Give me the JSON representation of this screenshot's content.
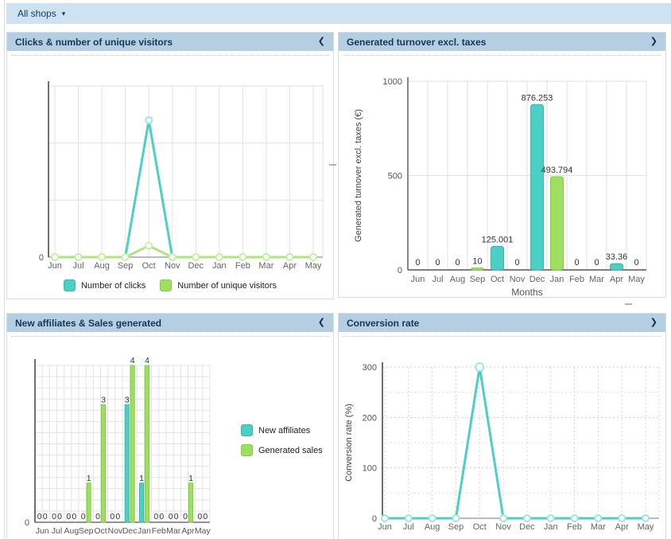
{
  "topbar": {
    "shop_selector": "All shops",
    "dropdown_icon": "▾"
  },
  "colors": {
    "teal": "#4ccfc4",
    "teal_border": "#38b7ac",
    "teal_pale": "#9fe5dd",
    "green": "#9de05f",
    "green_border": "#82cc43",
    "green_pale": "#c9efa4",
    "line_green": "#abe67f",
    "grid": "#e2e2e2",
    "axis_dark": "#444444",
    "axis_base": "#777777",
    "tick_text": "#666666",
    "value_text": "#333333"
  },
  "months": [
    "Jun",
    "Jul",
    "Aug",
    "Sep",
    "Oct",
    "Nov",
    "Dec",
    "Jan",
    "Feb",
    "Mar",
    "Apr",
    "May"
  ],
  "panels": [
    {
      "id": "clicks_visitors",
      "title": "Clicks & number of unique visitors",
      "collapse_icon": "❮",
      "chart_data": {
        "type": "line",
        "x": [
          "Jun",
          "Jul",
          "Aug",
          "Sep",
          "Oct",
          "Nov",
          "Dec",
          "Jan",
          "Feb",
          "Mar",
          "Apr",
          "May"
        ],
        "series": [
          {
            "name": "Number of clicks",
            "color": "teal",
            "values": [
              0,
              0,
              0,
              0,
              12,
              0,
              0,
              0,
              0,
              0,
              0,
              0
            ]
          },
          {
            "name": "Number of unique visitors",
            "color": "green",
            "values": [
              0,
              0,
              0,
              0,
              1,
              0,
              0,
              0,
              0,
              0,
              0,
              0
            ]
          }
        ],
        "ylim": [
          0,
          15
        ],
        "y_tick_labels": [
          "0"
        ],
        "legend_position": "bottom",
        "grid": true
      }
    },
    {
      "id": "turnover",
      "title": "Generated turnover excl. taxes",
      "collapse_icon": "❯",
      "chart_data": {
        "type": "bar",
        "categories": [
          "Jun",
          "Jul",
          "Aug",
          "Sep",
          "Oct",
          "Nov",
          "Dec",
          "Jan",
          "Feb",
          "Mar",
          "Apr",
          "May"
        ],
        "values": [
          0,
          0,
          0,
          10,
          125.001,
          0,
          876.253,
          493.794,
          0,
          0,
          33.36,
          0
        ],
        "data_labels": [
          "0",
          "0",
          "0",
          "10",
          "125.001",
          "0",
          "876.253",
          "493.794",
          "0",
          "0",
          "33.36",
          "0"
        ],
        "bar_colors": [
          null,
          null,
          null,
          "green",
          "teal",
          null,
          "teal",
          "green",
          null,
          null,
          "teal",
          null
        ],
        "yticks": [
          0,
          500,
          1000
        ],
        "ylim": [
          0,
          1000
        ],
        "ylabel": "Generated turnover excl. taxes (€)",
        "xlabel": "Months",
        "grid": true
      }
    },
    {
      "id": "affiliates_sales",
      "title": "New affiliates & Sales generated",
      "collapse_icon": "❮",
      "chart_data": {
        "type": "grouped_bar",
        "categories": [
          "Jun",
          "Jul",
          "Aug",
          "Sep",
          "Oct",
          "Nov",
          "Dec",
          "Jan",
          "Feb",
          "Mar",
          "Apr",
          "May"
        ],
        "series": [
          {
            "name": "New affiliates",
            "color": "teal",
            "values": [
              0,
              0,
              0,
              0,
              0,
              0,
              3,
              1,
              0,
              0,
              0,
              0
            ]
          },
          {
            "name": "Generated sales",
            "color": "green",
            "values": [
              0,
              0,
              0,
              1,
              3,
              0,
              4,
              4,
              0,
              0,
              1,
              0
            ]
          }
        ],
        "ylim": [
          0,
          4
        ],
        "y_tick_labels": [
          "0"
        ],
        "legend_position": "right",
        "grid": true
      }
    },
    {
      "id": "conversion",
      "title": "Conversion rate",
      "collapse_icon": "❯",
      "chart_data": {
        "type": "line",
        "x": [
          "Jun",
          "Jul",
          "Aug",
          "Sep",
          "Oct",
          "Nov",
          "Dec",
          "Jan",
          "Feb",
          "Mar",
          "Apr",
          "May"
        ],
        "series": [
          {
            "name": "Conversion rate",
            "color": "teal",
            "values": [
              0,
              0,
              0,
              0,
              300,
              0,
              0,
              0,
              0,
              0,
              0,
              0
            ]
          }
        ],
        "yticks": [
          0,
          100,
          200,
          300
        ],
        "ylim": [
          0,
          300
        ],
        "ylabel": "Conversion rate (%)",
        "grid_style": "dotted"
      }
    }
  ]
}
